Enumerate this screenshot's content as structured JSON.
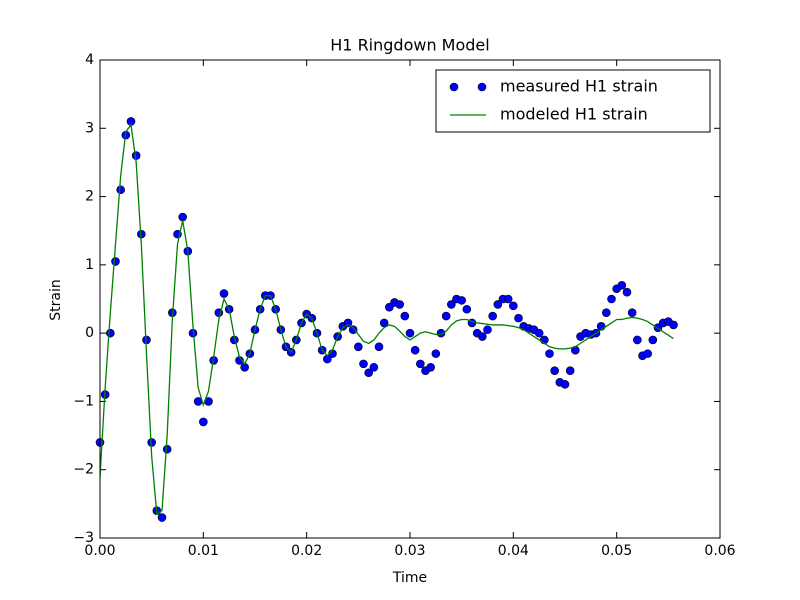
{
  "chart_data": {
    "type": "scatter",
    "title": "H1 Ringdown Model",
    "x_label": "Time",
    "y_label": "Strain",
    "x": [
      0,
      0.0005,
      0.001,
      0.0015,
      0.002,
      0.0025,
      0.003,
      0.0035,
      0.004,
      0.0045,
      0.005,
      0.0055,
      0.006,
      0.0065,
      0.007,
      0.0075,
      0.008,
      0.0085,
      0.009,
      0.0095,
      0.01,
      0.0105,
      0.011,
      0.0115,
      0.012,
      0.0125,
      0.013,
      0.0135,
      0.014,
      0.0145,
      0.015,
      0.0155,
      0.016,
      0.0165,
      0.017,
      0.0175,
      0.018,
      0.0185,
      0.019,
      0.0195,
      0.02,
      0.0205,
      0.021,
      0.0215,
      0.022,
      0.0225,
      0.023,
      0.0235,
      0.024,
      0.0245,
      0.025,
      0.0255,
      0.026,
      0.0265,
      0.027,
      0.0275,
      0.028,
      0.0285,
      0.029,
      0.0295,
      0.03,
      0.0305,
      0.031,
      0.0315,
      0.032,
      0.0325,
      0.033,
      0.0335,
      0.034,
      0.0345,
      0.035,
      0.0355,
      0.036,
      0.0365,
      0.037,
      0.0375,
      0.038,
      0.0385,
      0.039,
      0.0395,
      0.04,
      0.0405,
      0.041,
      0.0415,
      0.042,
      0.0425,
      0.043,
      0.0435,
      0.044,
      0.0445,
      0.045,
      0.0455,
      0.046,
      0.0465,
      0.047,
      0.0475,
      0.048,
      0.0485,
      0.049,
      0.0495,
      0.05,
      0.0505,
      0.051,
      0.0515,
      0.052,
      0.0525,
      0.053,
      0.0535,
      0.054,
      0.0545,
      0.055,
      0.0555
    ],
    "series": [
      {
        "name": "measured H1 strain",
        "mode": "markers",
        "color": "#0000ff",
        "values": [
          -1.6,
          -0.9,
          0.0,
          1.05,
          2.1,
          2.9,
          3.1,
          2.6,
          1.45,
          -0.1,
          -1.6,
          -2.6,
          -2.7,
          -1.7,
          0.3,
          1.45,
          1.7,
          1.2,
          0.0,
          -1.0,
          -1.3,
          -1.0,
          -0.4,
          0.3,
          0.58,
          0.35,
          -0.1,
          -0.4,
          -0.5,
          -0.3,
          0.05,
          0.35,
          0.55,
          0.55,
          0.35,
          0.05,
          -0.2,
          -0.28,
          -0.1,
          0.15,
          0.28,
          0.22,
          0.0,
          -0.25,
          -0.38,
          -0.3,
          -0.05,
          0.1,
          0.15,
          0.05,
          -0.2,
          -0.45,
          -0.58,
          -0.5,
          -0.2,
          0.15,
          0.38,
          0.45,
          0.42,
          0.25,
          0.0,
          -0.25,
          -0.45,
          -0.55,
          -0.5,
          -0.3,
          0.0,
          0.25,
          0.42,
          0.5,
          0.48,
          0.35,
          0.15,
          0.0,
          -0.05,
          0.05,
          0.25,
          0.42,
          0.5,
          0.5,
          0.4,
          0.22,
          0.1,
          0.07,
          0.05,
          0.0,
          -0.1,
          -0.3,
          -0.55,
          -0.72,
          -0.75,
          -0.55,
          -0.25,
          -0.05,
          0.0,
          -0.02,
          0.0,
          0.1,
          0.3,
          0.5,
          0.65,
          0.7,
          0.6,
          0.3,
          -0.1,
          -0.33,
          -0.3,
          -0.1,
          0.08,
          0.15,
          0.17,
          0.12
        ]
      },
      {
        "name": "modeled H1 strain",
        "mode": "line",
        "color": "#008000",
        "values": [
          -2.1,
          -0.8,
          0.3,
          1.3,
          2.3,
          2.95,
          3.05,
          2.5,
          1.3,
          -0.3,
          -1.8,
          -2.65,
          -2.6,
          -1.5,
          0.2,
          1.3,
          1.65,
          1.2,
          0.1,
          -0.8,
          -1.05,
          -0.85,
          -0.35,
          0.2,
          0.5,
          0.35,
          -0.05,
          -0.35,
          -0.45,
          -0.3,
          0.05,
          0.35,
          0.55,
          0.55,
          0.35,
          0.05,
          -0.2,
          -0.28,
          -0.1,
          0.15,
          0.28,
          0.22,
          0.0,
          -0.25,
          -0.33,
          -0.25,
          -0.05,
          0.08,
          0.12,
          0.08,
          -0.02,
          -0.12,
          -0.15,
          -0.1,
          0.0,
          0.08,
          0.12,
          0.1,
          0.03,
          -0.05,
          -0.1,
          -0.05,
          0.0,
          0.02,
          0.0,
          -0.02,
          -0.02,
          0.03,
          0.12,
          0.18,
          0.2,
          0.2,
          0.17,
          0.15,
          0.14,
          0.13,
          0.12,
          0.12,
          0.12,
          0.11,
          0.1,
          0.08,
          0.05,
          0.0,
          -0.05,
          -0.1,
          -0.15,
          -0.2,
          -0.22,
          -0.23,
          -0.23,
          -0.22,
          -0.2,
          -0.15,
          -0.1,
          -0.05,
          0.0,
          0.05,
          0.1,
          0.15,
          0.2,
          0.2,
          0.22,
          0.23,
          0.22,
          0.2,
          0.17,
          0.12,
          0.07,
          0.02,
          -0.03,
          -0.08
        ]
      }
    ],
    "xlim": [
      0,
      0.06
    ],
    "ylim": [
      -3,
      4
    ],
    "xticks": [
      {
        "value": 0,
        "label": "0.00"
      },
      {
        "value": 0.01,
        "label": "0.01"
      },
      {
        "value": 0.02,
        "label": "0.02"
      },
      {
        "value": 0.03,
        "label": "0.03"
      },
      {
        "value": 0.04,
        "label": "0.04"
      },
      {
        "value": 0.05,
        "label": "0.05"
      },
      {
        "value": 0.06,
        "label": "0.06"
      }
    ],
    "yticks": [
      {
        "value": -3,
        "label": "−3"
      },
      {
        "value": -2,
        "label": "−2"
      },
      {
        "value": -1,
        "label": "−1"
      },
      0,
      1,
      2,
      3,
      4
    ],
    "grid": false,
    "legend": "upper right"
  }
}
